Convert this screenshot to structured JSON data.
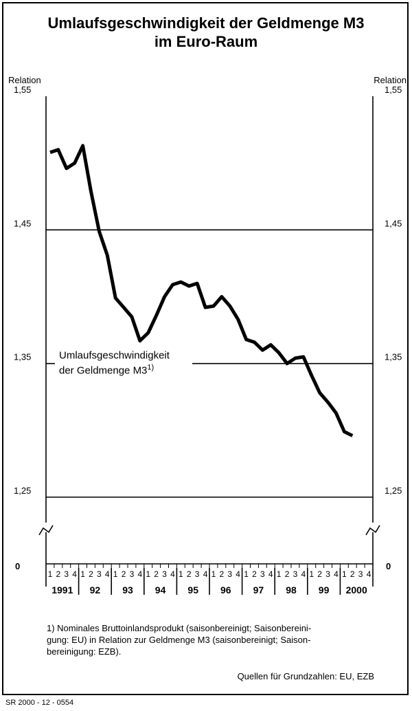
{
  "chart_data": {
    "type": "line",
    "title": "Umlaufsgeschwindigkeit der Geldmenge M3",
    "subtitle": "im Euro-Raum",
    "ylabel_left": "Relation",
    "ylabel_right": "Relation",
    "y_ticks": [
      "1,55",
      "1,45",
      "1,35",
      "1,25"
    ],
    "y_ticks_values": [
      1.55,
      1.45,
      1.35,
      1.25
    ],
    "y_zero_label": "0",
    "ylim": [
      1.25,
      1.55
    ],
    "axis_break": true,
    "grid": "horizontal",
    "quarter_labels": [
      "1",
      "2",
      "3",
      "4"
    ],
    "years": [
      "1991",
      "92",
      "93",
      "94",
      "95",
      "96",
      "97",
      "98",
      "99",
      "2000"
    ],
    "series_annotation": [
      "Umlaufsgeschwindigkeit",
      "der Geldmenge M3"
    ],
    "series_annotation_sup": "1)",
    "series": [
      {
        "color": "#000000",
        "x": [
          "1991-Q1",
          "1991-Q2",
          "1991-Q3",
          "1991-Q4",
          "1992-Q1",
          "1992-Q2",
          "1992-Q3",
          "1992-Q4",
          "1993-Q1",
          "1993-Q2",
          "1993-Q3",
          "1993-Q4",
          "1994-Q1",
          "1994-Q2",
          "1994-Q3",
          "1994-Q4",
          "1995-Q1",
          "1995-Q2",
          "1995-Q3",
          "1995-Q4",
          "1996-Q1",
          "1996-Q2",
          "1996-Q3",
          "1996-Q4",
          "1997-Q1",
          "1997-Q2",
          "1997-Q3",
          "1997-Q4",
          "1998-Q1",
          "1998-Q2",
          "1998-Q3",
          "1998-Q4",
          "1999-Q1",
          "1999-Q2",
          "1999-Q3",
          "1999-Q4",
          "2000-Q1",
          "2000-Q2"
        ],
        "values": [
          1.508,
          1.51,
          1.496,
          1.5,
          1.513,
          1.479,
          1.449,
          1.431,
          1.399,
          1.392,
          1.385,
          1.367,
          1.373,
          1.386,
          1.4,
          1.409,
          1.411,
          1.408,
          1.41,
          1.392,
          1.393,
          1.4,
          1.393,
          1.383,
          1.368,
          1.366,
          1.36,
          1.364,
          1.358,
          1.35,
          1.354,
          1.355,
          1.341,
          1.328,
          1.321,
          1.313,
          1.299,
          1.296
        ]
      }
    ]
  },
  "footnote": "1) Nominales Bruttoinlandsprodukt (saisonbereinigt; Saisonbereini-\ngung: EU) in Relation zur Geldmenge M3 (saisonbereinigt; Saison-\nbereinigung: EZB).",
  "footnote_lines": [
    "1) Nominales Bruttoinlandsprodukt (saisonbereinigt; Saisonbereini-",
    "gung: EU) in Relation zur Geldmenge M3 (saisonbereinigt; Saison-",
    "bereinigung: EZB)."
  ],
  "source": "Quellen für Grundzahlen: EU, EZB",
  "code": "SR 2000 - 12 - 0554"
}
